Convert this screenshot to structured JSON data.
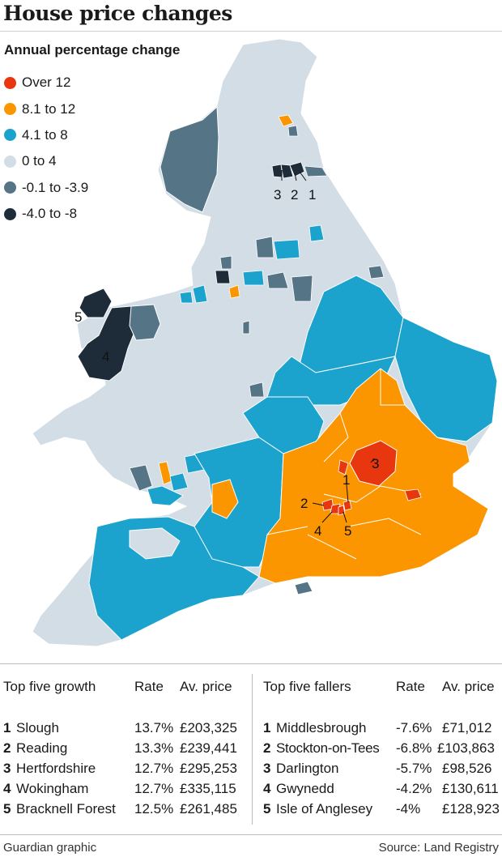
{
  "title": "House price changes",
  "subtitle": "Annual percentage change",
  "colors": {
    "over_12": "#e8360e",
    "8_1_to_12": "#fb9600",
    "4_1_to_8": "#1ca3cd",
    "0_to_4": "#d2dde5",
    "neg_0_1_to_3_9": "#557485",
    "neg_4_to_8": "#1e2c39"
  },
  "legend": [
    {
      "label": "Over 12",
      "color": "#e8360e"
    },
    {
      "label": "8.1 to 12",
      "color": "#fb9600"
    },
    {
      "label": "4.1 to 8",
      "color": "#1ca3cd"
    },
    {
      "label": "0 to 4",
      "color": "#d2dde5"
    },
    {
      "label": "-0.1 to -3.9",
      "color": "#557485"
    },
    {
      "label": "-4.0 to -8",
      "color": "#1e2c39"
    }
  ],
  "map_labels": {
    "south_1": "1",
    "south_2": "2",
    "south_3": "3",
    "south_4": "4",
    "south_5": "5",
    "north_1": "1",
    "north_2": "2",
    "north_3": "3",
    "wales_4": "4",
    "wales_5": "5"
  },
  "growth": {
    "header": "Top five growth",
    "rate_header": "Rate",
    "price_header": "Av. price",
    "rows": [
      {
        "rank": "1",
        "name": "Slough",
        "rate": "13.7%",
        "price": "£203,325"
      },
      {
        "rank": "2",
        "name": "Reading",
        "rate": "13.3%",
        "price": "£239,441"
      },
      {
        "rank": "3",
        "name": "Hertfordshire",
        "rate": "12.7%",
        "price": "£295,253"
      },
      {
        "rank": "4",
        "name": "Wokingham",
        "rate": "12.7%",
        "price": "£335,115"
      },
      {
        "rank": "5",
        "name": "Bracknell Forest",
        "rate": "12.5%",
        "price": "£261,485"
      }
    ]
  },
  "fallers": {
    "header": "Top five fallers",
    "rate_header": "Rate",
    "price_header": "Av. price",
    "rows": [
      {
        "rank": "1",
        "name": "Middlesbrough",
        "rate": "-7.6%",
        "price": "£71,012"
      },
      {
        "rank": "2",
        "name": "Stockton-on-Tees",
        "rate": "-6.8%",
        "price": "£103,863"
      },
      {
        "rank": "3",
        "name": "Darlington",
        "rate": "-5.7%",
        "price": "£98,526"
      },
      {
        "rank": "4",
        "name": "Gwynedd",
        "rate": "-4.2%",
        "price": "£130,611"
      },
      {
        "rank": "5",
        "name": "Isle of Anglesey",
        "rate": "-4%",
        "price": "£128,923"
      }
    ]
  },
  "footer": {
    "credit": "Guardian graphic",
    "source": "Source: Land Registry"
  }
}
